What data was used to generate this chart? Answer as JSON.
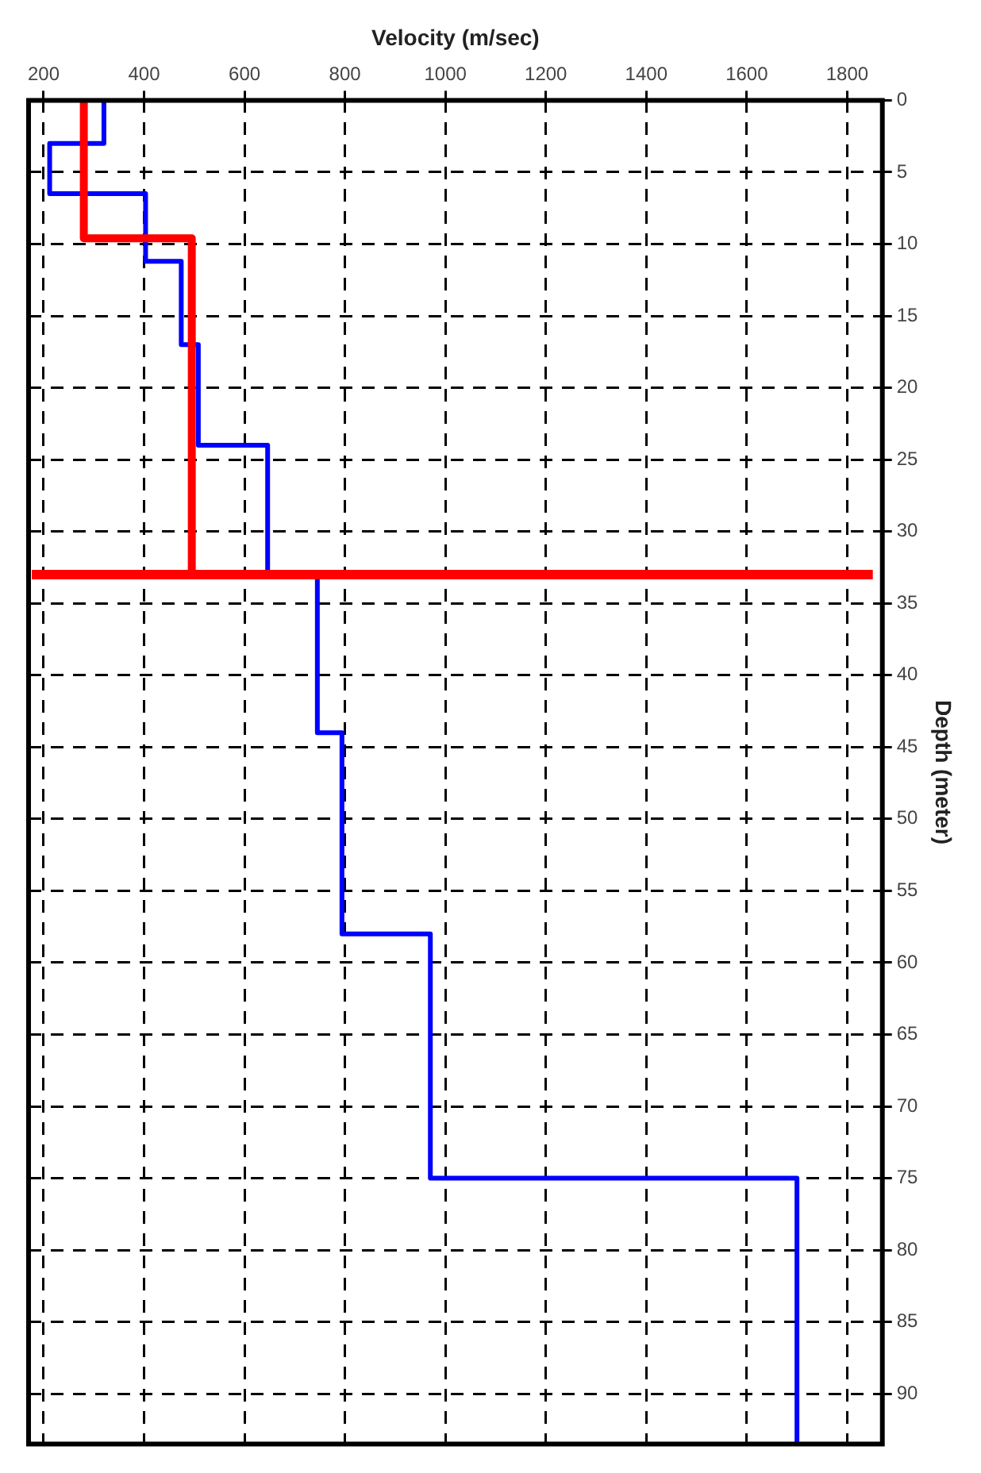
{
  "chart_data": {
    "type": "line",
    "xlabel": "Velocity (m/sec)",
    "ylabel": "Depth (meter)",
    "xlim": [
      170,
      1870
    ],
    "xticks": [
      200,
      400,
      600,
      800,
      1000,
      1200,
      1400,
      1600,
      1800
    ],
    "ylim": [
      93.5,
      0
    ],
    "yticks": [
      0,
      5,
      10,
      15,
      20,
      25,
      30,
      35,
      40,
      45,
      50,
      55,
      60,
      65,
      70,
      75,
      80,
      85,
      90
    ],
    "grid": true,
    "line_style": "solid",
    "marker": "none",
    "series": [
      {
        "color": "#0000ff",
        "x": [
          320,
          320,
          212,
          212,
          403,
          403,
          474,
          474,
          508,
          508,
          646,
          646,
          745,
          745,
          794,
          794,
          970,
          970,
          1700,
          1700
        ],
        "values": [
          0,
          3,
          3,
          6.5,
          6.5,
          11.2,
          11.2,
          17,
          17,
          24,
          24,
          33,
          33,
          44,
          44,
          58,
          58,
          75,
          75,
          93.5
        ]
      },
      {
        "color": "#ff0000",
        "x": [
          280,
          280,
          495,
          495
        ],
        "values": [
          0,
          9.6,
          9.6,
          33
        ]
      }
    ],
    "ref_lines": [
      {
        "axis": "y",
        "value": 33,
        "color": "#ff0000"
      }
    ]
  }
}
